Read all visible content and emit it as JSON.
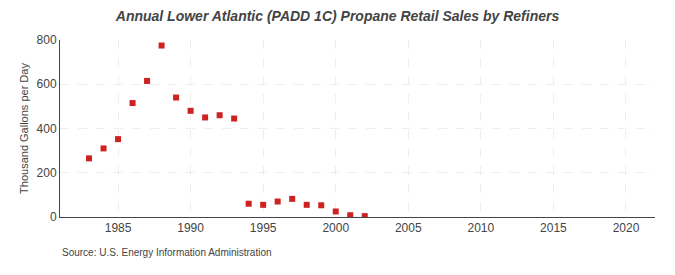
{
  "chart_data": {
    "type": "scatter",
    "title": "Annual Lower Atlantic (PADD 1C) Propane Retail Sales by Refiners",
    "ylabel": "Thousand Gallons per Day",
    "annotations": [
      "Source: U.S. Energy Information Administration"
    ],
    "x": [
      1983,
      1984,
      1985,
      1986,
      1987,
      1988,
      1989,
      1990,
      1991,
      1992,
      1993,
      1994,
      1995,
      1996,
      1997,
      1998,
      1999,
      2000,
      2001,
      2002
    ],
    "values": [
      265,
      310,
      352,
      515,
      615,
      775,
      540,
      480,
      450,
      460,
      445,
      60,
      55,
      70,
      82,
      55,
      53,
      25,
      8,
      4
    ],
    "color": "#cc2222",
    "marker": "square",
    "xlim": [
      1981,
      2022
    ],
    "ylim": [
      0,
      800
    ],
    "xticks": [
      1985,
      1990,
      1995,
      2000,
      2005,
      2010,
      2015,
      2020
    ],
    "yticks": [
      0,
      200,
      400,
      600,
      800
    ],
    "grid": true
  }
}
